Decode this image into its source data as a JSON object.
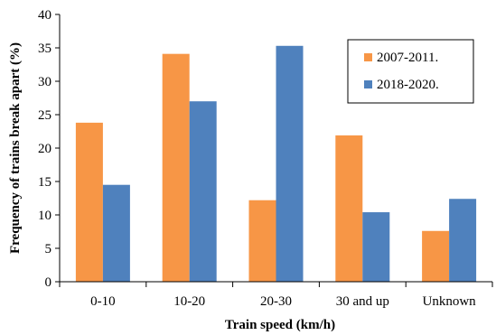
{
  "chart_data": {
    "type": "bar",
    "title": "",
    "xlabel": "Train speed (km/h)",
    "ylabel": "Frequency of trains break apart (%)",
    "categories": [
      "0-10",
      "10-20",
      "20-30",
      "30 and up",
      "Unknown"
    ],
    "series": [
      {
        "name": "2007-2011.",
        "color": "#F79646",
        "values": [
          23.8,
          34.1,
          12.2,
          21.9,
          7.6
        ]
      },
      {
        "name": "2018-2020.",
        "color": "#4F81BD",
        "values": [
          14.5,
          27.0,
          35.3,
          10.4,
          12.4
        ]
      }
    ],
    "ylim": [
      0,
      40
    ],
    "yticks": [
      "0",
      "5",
      "10",
      "15",
      "20",
      "25",
      "30",
      "35",
      "40"
    ],
    "grid": false,
    "legend_position": "top-right"
  }
}
